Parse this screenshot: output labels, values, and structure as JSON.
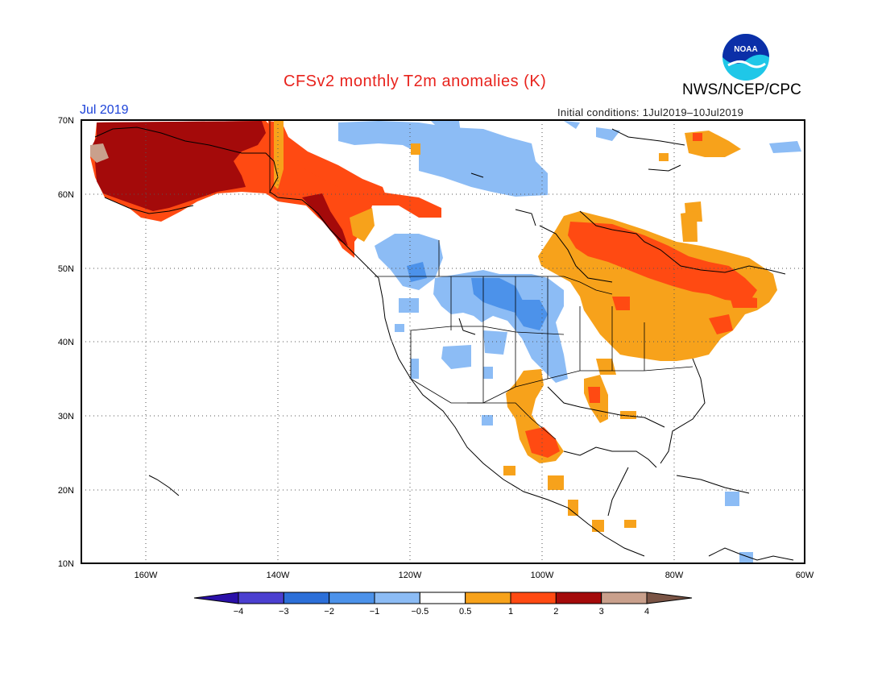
{
  "title": "CFSv2 monthly T2m anomalies (K)",
  "agency": "NWS/NCEP/CPC",
  "logo_text": "NOAA",
  "month_label": "Jul 2019",
  "initial_conditions": "Initial conditions: 1Jul2019–10Jul2019",
  "lat_labels": [
    "70N",
    "60N",
    "50N",
    "40N",
    "30N",
    "20N",
    "10N"
  ],
  "lon_labels": [
    "160W",
    "140W",
    "120W",
    "100W",
    "80W",
    "60W"
  ],
  "colorbar": {
    "ticks": [
      "−4",
      "−3",
      "−2",
      "−1",
      "−0.5",
      "0.5",
      "1",
      "2",
      "3",
      "4"
    ],
    "colors": [
      "#2a10a8",
      "#4b3fd0",
      "#2c6fd8",
      "#4c92ea",
      "#8cbcf5",
      "#ffffff",
      "#f7a21b",
      "#ff4a12",
      "#a40a0a",
      "#c9a08c",
      "#7a5445"
    ]
  },
  "colors": {
    "title": "#e8231d",
    "month": "#1d43d9"
  }
}
